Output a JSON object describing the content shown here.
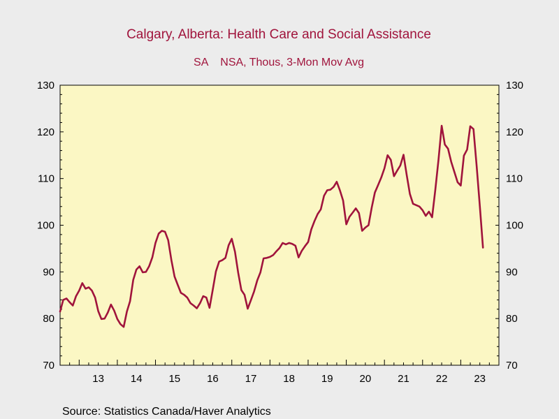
{
  "chart_data": {
    "type": "line",
    "title": "Calgary, Alberta: Health Care and Social Assistance",
    "subtitle": "SA    NSA, Thous, 3-Mon Mov Avg",
    "source": "Source:  Statistics Canada/Haver Analytics",
    "xlabel": "",
    "ylabel": "",
    "ylim": [
      70,
      130
    ],
    "yticks": [
      70,
      80,
      90,
      100,
      110,
      120,
      130
    ],
    "xlim": [
      2012.5,
      2024.0
    ],
    "x_ticks": [
      {
        "x": 2013.0,
        "label": "13"
      },
      {
        "x": 2014.0,
        "label": "14"
      },
      {
        "x": 2015.0,
        "label": "15"
      },
      {
        "x": 2016.0,
        "label": "16"
      },
      {
        "x": 2017.0,
        "label": "17"
      },
      {
        "x": 2018.0,
        "label": "18"
      },
      {
        "x": 2019.0,
        "label": "19"
      },
      {
        "x": 2020.0,
        "label": "20"
      },
      {
        "x": 2021.0,
        "label": "21"
      },
      {
        "x": 2022.0,
        "label": "22"
      },
      {
        "x": 2023.0,
        "label": "23"
      }
    ],
    "grid": false,
    "dual_y_axis": true,
    "background_color": "#fbf7c4",
    "line_color": "#a0143c",
    "series": [
      {
        "name": "",
        "x": [
          2012.5,
          2012.583,
          2012.667,
          2012.75,
          2012.833,
          2012.917,
          2013.0,
          2013.083,
          2013.167,
          2013.25,
          2013.333,
          2013.417,
          2013.5,
          2013.583,
          2013.667,
          2013.75,
          2013.833,
          2013.917,
          2014.0,
          2014.083,
          2014.167,
          2014.25,
          2014.333,
          2014.417,
          2014.5,
          2014.583,
          2014.667,
          2014.75,
          2014.833,
          2014.917,
          2015.0,
          2015.083,
          2015.167,
          2015.25,
          2015.333,
          2015.417,
          2015.5,
          2015.583,
          2015.667,
          2015.75,
          2015.833,
          2015.917,
          2016.0,
          2016.083,
          2016.167,
          2016.25,
          2016.333,
          2016.417,
          2016.5,
          2016.583,
          2016.667,
          2016.75,
          2016.833,
          2016.917,
          2017.0,
          2017.083,
          2017.167,
          2017.25,
          2017.333,
          2017.417,
          2017.5,
          2017.583,
          2017.667,
          2017.75,
          2017.833,
          2017.917,
          2018.0,
          2018.083,
          2018.167,
          2018.25,
          2018.333,
          2018.417,
          2018.5,
          2018.583,
          2018.667,
          2018.75,
          2018.833,
          2018.917,
          2019.0,
          2019.083,
          2019.167,
          2019.25,
          2019.333,
          2019.417,
          2019.5,
          2019.583,
          2019.667,
          2019.75,
          2019.833,
          2019.917,
          2020.0,
          2020.083,
          2020.167,
          2020.25,
          2020.333,
          2020.417,
          2020.5,
          2020.583,
          2020.667,
          2020.75,
          2020.833,
          2020.917,
          2021.0,
          2021.083,
          2021.167,
          2021.25,
          2021.333,
          2021.417,
          2021.5,
          2021.583,
          2021.667,
          2021.75,
          2021.833,
          2021.917,
          2022.0,
          2022.083,
          2022.167,
          2022.25,
          2022.333,
          2022.417,
          2022.5,
          2022.583,
          2022.667,
          2022.75,
          2022.833,
          2022.917,
          2023.0,
          2023.083,
          2023.167,
          2023.25,
          2023.333,
          2023.417,
          2023.5,
          2023.583
        ],
        "values": [
          81.5,
          84.0,
          84.3,
          83.5,
          82.8,
          84.8,
          86.0,
          87.6,
          86.4,
          86.7,
          86.0,
          84.5,
          81.6,
          79.9,
          80.0,
          81.3,
          83.0,
          81.7,
          79.9,
          78.8,
          78.2,
          81.5,
          83.7,
          88.3,
          90.5,
          91.2,
          89.9,
          90.0,
          91.2,
          93.1,
          96.2,
          98.2,
          98.8,
          98.6,
          96.8,
          92.5,
          89.0,
          87.2,
          85.5,
          85.1,
          84.5,
          83.3,
          82.8,
          82.2,
          83.3,
          84.8,
          84.5,
          82.3,
          86.1,
          90.1,
          92.2,
          92.5,
          93.0,
          95.7,
          97.1,
          94.3,
          89.8,
          86.1,
          85.1,
          82.1,
          83.9,
          85.8,
          88.2,
          89.9,
          92.9,
          93.0,
          93.2,
          93.6,
          94.4,
          95.1,
          96.2,
          95.9,
          96.2,
          96.0,
          95.6,
          93.1,
          94.5,
          95.5,
          96.4,
          99.1,
          100.9,
          102.4,
          103.4,
          106.3,
          107.5,
          107.6,
          108.2,
          109.3,
          107.5,
          105.3,
          100.2,
          101.8,
          102.7,
          103.6,
          102.6,
          98.8,
          99.5,
          100.0,
          103.8,
          107.0,
          108.6,
          110.2,
          112.2,
          115.0,
          114.0,
          110.5,
          111.7,
          112.8,
          115.1,
          110.8,
          106.7,
          104.6,
          104.3,
          104.0,
          103.2,
          102.0,
          102.9,
          101.7,
          107.6,
          114.1,
          121.3,
          117.3,
          116.4,
          113.6,
          111.4,
          109.2,
          108.5,
          114.9,
          116.2,
          121.2,
          120.6,
          112.6,
          104.1,
          95.2
        ]
      }
    ]
  }
}
